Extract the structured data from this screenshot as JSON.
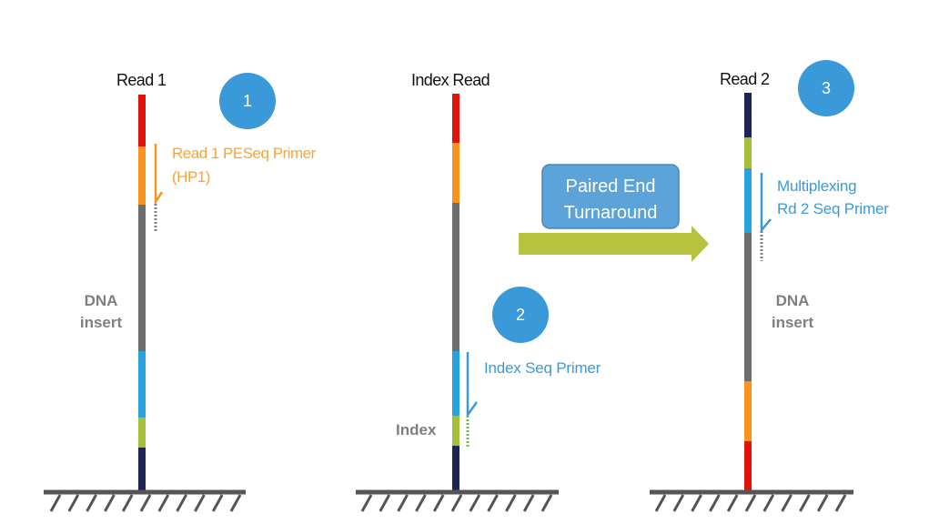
{
  "colors": {
    "red": "#E3120B",
    "orange": "#F7941D",
    "grey": "#6D6D6D",
    "blue": "#29A3DD",
    "green": "#A5BF3B",
    "navy": "#1E2454",
    "primer_orange": "#F7941D",
    "primer_blue": "#3A9AD9",
    "step_circle": "#3A9AD9",
    "turnaround_arrow": "#B7C23E",
    "turnaround_box": "#5BA3D8",
    "ground": "#555555"
  },
  "panel1": {
    "title": "Read 1",
    "step": "1",
    "primer_line1": "Read 1 PESeq Primer",
    "primer_line2": "(HP1)",
    "insert_line1": "DNA",
    "insert_line2": "insert"
  },
  "panel2": {
    "title": "Index Read",
    "step": "2",
    "primer": "Index Seq Primer",
    "index_label": "Index"
  },
  "panel3": {
    "title": "Read 2",
    "step": "3",
    "primer_line1": "Multiplexing",
    "primer_line2": "Rd  2 Seq Primer",
    "insert_line1": "DNA",
    "insert_line2": "insert"
  },
  "turnaround": {
    "line1": "Paired End",
    "line2": "Turnaround"
  }
}
